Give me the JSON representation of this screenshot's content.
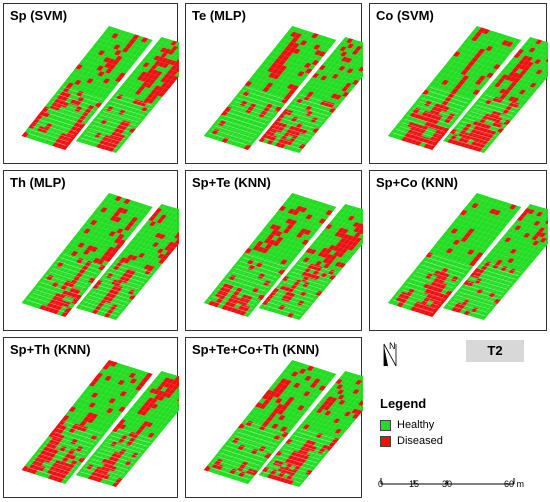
{
  "panels": [
    {
      "title": "Sp (SVM)",
      "density": 0.38
    },
    {
      "title": "Te (MLP)",
      "density": 0.3
    },
    {
      "title": "Co (SVM)",
      "density": 0.34
    },
    {
      "title": "Th (MLP)",
      "density": 0.42
    },
    {
      "title": "Sp+Te (KNN)",
      "density": 0.33
    },
    {
      "title": "Sp+Co (KNN)",
      "density": 0.4
    },
    {
      "title": "Sp+Th (KNN)",
      "density": 0.46
    },
    {
      "title": "Sp+Te+Co+Th (KNN)",
      "density": 0.36
    }
  ],
  "north": {
    "label": "N"
  },
  "badge": {
    "label": "T2"
  },
  "legend": {
    "title": "Legend",
    "items": [
      {
        "label": "Healthy",
        "color": "#22dd22"
      },
      {
        "label": "Diseased",
        "color": "#ee1111"
      }
    ]
  },
  "scale": {
    "ticks": [
      "0",
      "15",
      "30",
      "60 m"
    ]
  },
  "colors": {
    "healthy": "#22dd22",
    "diseased": "#ee1111",
    "background": "#ffffff"
  }
}
